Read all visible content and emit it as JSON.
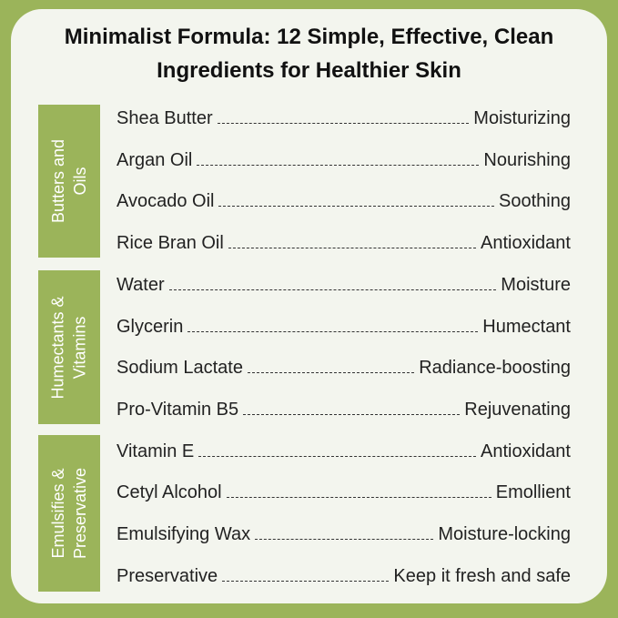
{
  "title_line1": "Minimalist Formula: 12 Simple, Effective, Clean",
  "title_line2": "Ingredients for Healthier Skin",
  "colors": {
    "accent": "#9bb45a",
    "card": "#f3f5ee"
  },
  "groups": [
    {
      "label": "Butters and\nOils"
    },
    {
      "label": "Humectants &\nVitamins"
    },
    {
      "label": "Emulsifies &\nPreservative"
    }
  ],
  "ingredients": [
    {
      "name": "Shea Butter",
      "benefit": "Moisturizing"
    },
    {
      "name": "Argan Oil",
      "benefit": "Nourishing"
    },
    {
      "name": "Avocado Oil",
      "benefit": "Soothing"
    },
    {
      "name": "Rice Bran Oil",
      "benefit": "Antioxidant"
    },
    {
      "name": "Water",
      "benefit": "Moisture"
    },
    {
      "name": "Glycerin",
      "benefit": "Humectant"
    },
    {
      "name": "Sodium Lactate",
      "benefit": "Radiance-boosting"
    },
    {
      "name": "Pro-Vitamin B5",
      "benefit": "Rejuvenating"
    },
    {
      "name": "Vitamin E",
      "benefit": "Antioxidant"
    },
    {
      "name": "Cetyl Alcohol",
      "benefit": "Emollient"
    },
    {
      "name": "Emulsifying Wax",
      "benefit": "Moisture-locking"
    },
    {
      "name": "Preservative",
      "benefit": "Keep it fresh and safe"
    }
  ]
}
